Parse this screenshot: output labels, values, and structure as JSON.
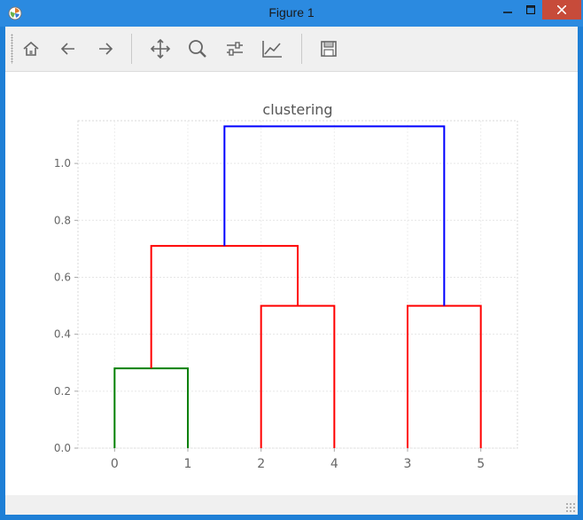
{
  "window": {
    "title": "Figure 1",
    "icon": "matplotlib-icon",
    "controls": {
      "minimize": "minimize-icon",
      "maximize": "maximize-icon",
      "close": "close-icon"
    }
  },
  "toolbar": {
    "tools": [
      {
        "name": "home",
        "icon": "home-icon"
      },
      {
        "name": "back",
        "icon": "arrow-left-icon"
      },
      {
        "name": "forward",
        "icon": "arrow-right-icon"
      },
      {
        "name": "pan",
        "icon": "move-icon"
      },
      {
        "name": "zoom",
        "icon": "zoom-icon"
      },
      {
        "name": "subplots",
        "icon": "sliders-icon"
      },
      {
        "name": "edit",
        "icon": "chart-line-icon"
      },
      {
        "name": "save",
        "icon": "save-icon"
      }
    ]
  },
  "chart_data": {
    "type": "dendrogram",
    "title": "clustering",
    "xlabel": "",
    "ylabel": "",
    "leaves": [
      "0",
      "1",
      "2",
      "4",
      "3",
      "5"
    ],
    "yticks": [
      "0.0",
      "0.2",
      "0.4",
      "0.6",
      "0.8",
      "1.0"
    ],
    "ylim": [
      0,
      1.15
    ],
    "grid": true,
    "links": [
      {
        "left": 0,
        "right": 1,
        "height": 0.28,
        "color": "#008000"
      },
      {
        "left": 2,
        "right": 3,
        "height": 0.5,
        "color": "#ff0000"
      },
      {
        "left": 4,
        "right": 5,
        "height": 0.5,
        "color": "#ff0000"
      },
      {
        "left": 6,
        "right": 7,
        "height": 0.71,
        "color": "#ff0000"
      },
      {
        "left": 8,
        "right": 9,
        "height": 1.13,
        "color": "#0000ff"
      }
    ]
  }
}
